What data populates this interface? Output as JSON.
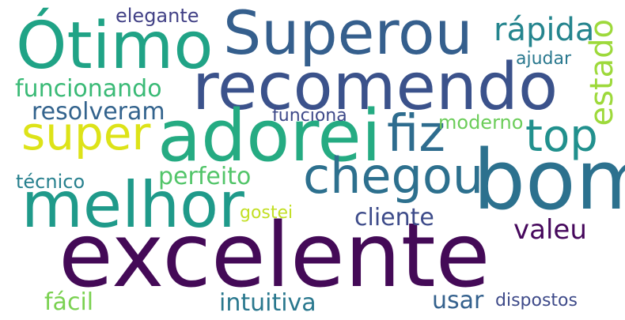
{
  "words": [
    {
      "id": "excelente",
      "text": "excelente",
      "color": "#440a57"
    },
    {
      "id": "bom",
      "text": "bom",
      "color": "#2c718e"
    },
    {
      "id": "recomendo",
      "text": "recomendo",
      "color": "#3b528b"
    },
    {
      "id": "superou",
      "text": "Superou",
      "color": "#355f8d"
    },
    {
      "id": "otimo",
      "text": "Ótimo",
      "color": "#20a386"
    },
    {
      "id": "adorei",
      "text": "adorei",
      "color": "#25ab82"
    },
    {
      "id": "melhor",
      "text": "melhor",
      "color": "#1f9a8a"
    },
    {
      "id": "chegou",
      "text": "chegou",
      "color": "#2d708e"
    },
    {
      "id": "super",
      "text": "super",
      "color": "#dde318"
    },
    {
      "id": "fiz",
      "text": "fiz",
      "color": "#2e6c8e"
    },
    {
      "id": "top",
      "text": "top",
      "color": "#21908d"
    },
    {
      "id": "rapida",
      "text": "rápida",
      "color": "#25858e"
    },
    {
      "id": "estado",
      "text": "estado",
      "color": "#9dd93b"
    },
    {
      "id": "funcionando",
      "text": "funcionando",
      "color": "#3aba76"
    },
    {
      "id": "resolveram",
      "text": "resolveram",
      "color": "#33638d"
    },
    {
      "id": "elegante",
      "text": "elegante",
      "color": "#424186"
    },
    {
      "id": "ajudar",
      "text": "ajudar",
      "color": "#2a788e"
    },
    {
      "id": "funciona",
      "text": "funciona",
      "color": "#3e4989"
    },
    {
      "id": "moderno",
      "text": "moderno",
      "color": "#6ccd5a"
    },
    {
      "id": "perfeito",
      "text": "perfeito",
      "color": "#52c569"
    },
    {
      "id": "tecnico",
      "text": "técnico",
      "color": "#27808e"
    },
    {
      "id": "cliente",
      "text": "cliente",
      "color": "#3e4c8a"
    },
    {
      "id": "gostei",
      "text": "gostei",
      "color": "#c2df23"
    },
    {
      "id": "valeu",
      "text": "valeu",
      "color": "#46085c"
    },
    {
      "id": "facil",
      "text": "fácil",
      "color": "#7ad151"
    },
    {
      "id": "intuitiva",
      "text": "intuitiva",
      "color": "#2a788e"
    },
    {
      "id": "usar",
      "text": "usar",
      "color": "#34618d"
    },
    {
      "id": "dispostos",
      "text": "dispostos",
      "color": "#3e4a89"
    }
  ]
}
